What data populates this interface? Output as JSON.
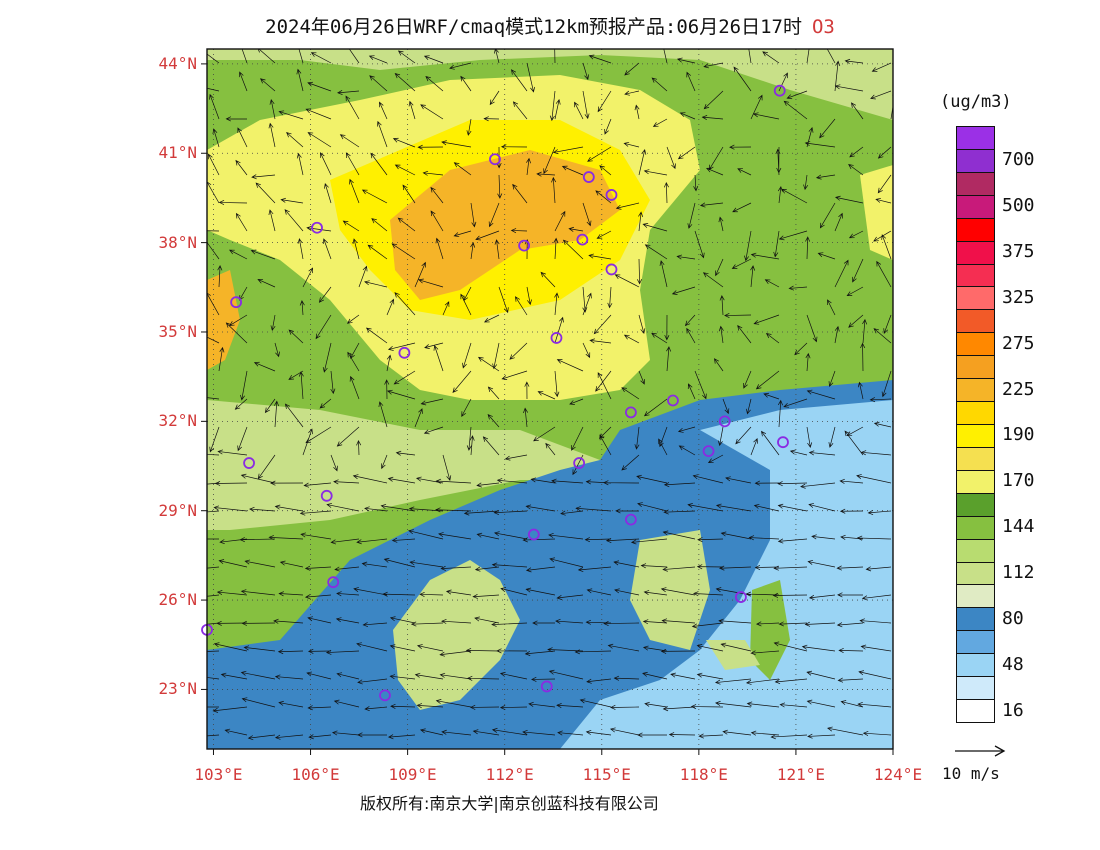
{
  "title": {
    "text": "2024年06月26日WRF/cmaq模式12km预报产品:06月26日17时",
    "pollutant": "O3"
  },
  "map": {
    "lat_labels": [
      "44°N",
      "41°N",
      "38°N",
      "35°N",
      "32°N",
      "29°N",
      "26°N",
      "23°N"
    ],
    "lon_labels": [
      "103°E",
      "106°E",
      "109°E",
      "112°E",
      "115°E",
      "118°E",
      "121°E",
      "124°E"
    ],
    "extent": {
      "lon_min": 102.8,
      "lon_max": 124.0,
      "lat_min": 21.0,
      "lat_max": 44.5
    }
  },
  "colorbar": {
    "unit": "(ug/m3)",
    "bins": [
      {
        "label": "",
        "color": "#9b30e6"
      },
      {
        "label": "700",
        "color": "#8f2fd0"
      },
      {
        "label": "",
        "color": "#b02a62"
      },
      {
        "label": "500",
        "color": "#c81a7a"
      },
      {
        "label": "",
        "color": "#ff0000"
      },
      {
        "label": "375",
        "color": "#f0104a"
      },
      {
        "label": "",
        "color": "#f52e52"
      },
      {
        "label": "325",
        "color": "#ff6a6a"
      },
      {
        "label": "",
        "color": "#f25a28"
      },
      {
        "label": "275",
        "color": "#ff8800"
      },
      {
        "label": "",
        "color": "#f5a020"
      },
      {
        "label": "225",
        "color": "#f5b428"
      },
      {
        "label": "",
        "color": "#ffd800"
      },
      {
        "label": "190",
        "color": "#fff000"
      },
      {
        "label": "",
        "color": "#f5e050"
      },
      {
        "label": "170",
        "color": "#f2f26a"
      },
      {
        "label": "",
        "color": "#5aa02c"
      },
      {
        "label": "144",
        "color": "#86c040"
      },
      {
        "label": "",
        "color": "#b8dc70"
      },
      {
        "label": "112",
        "color": "#c8e088"
      },
      {
        "label": "",
        "color": "#e0ebc4"
      },
      {
        "label": "80",
        "color": "#3c86c4"
      },
      {
        "label": "",
        "color": "#62a8e0"
      },
      {
        "label": "48",
        "color": "#9ad4f4"
      },
      {
        "label": "",
        "color": "#cfeafa"
      },
      {
        "label": "16",
        "color": "#ffffff"
      }
    ]
  },
  "wind_reference": "10 m/s",
  "copyright": "版权所有:南京大学|南京创蓝科技有限公司",
  "colors": {
    "label_red": "#d23a3a",
    "station_marker": "#8a2be2"
  },
  "stations": [
    {
      "lon": 120.5,
      "lat": 43.1
    },
    {
      "lon": 111.7,
      "lat": 40.8
    },
    {
      "lon": 114.6,
      "lat": 40.2
    },
    {
      "lon": 115.3,
      "lat": 39.6
    },
    {
      "lon": 106.2,
      "lat": 38.5
    },
    {
      "lon": 112.6,
      "lat": 37.9
    },
    {
      "lon": 114.4,
      "lat": 38.1
    },
    {
      "lon": 115.3,
      "lat": 37.1
    },
    {
      "lon": 103.7,
      "lat": 36.0
    },
    {
      "lon": 113.6,
      "lat": 34.8
    },
    {
      "lon": 108.9,
      "lat": 34.3
    },
    {
      "lon": 117.2,
      "lat": 32.7
    },
    {
      "lon": 118.8,
      "lat": 32.0
    },
    {
      "lon": 120.6,
      "lat": 31.3
    },
    {
      "lon": 115.9,
      "lat": 32.3
    },
    {
      "lon": 104.1,
      "lat": 30.6
    },
    {
      "lon": 114.3,
      "lat": 30.6
    },
    {
      "lon": 106.5,
      "lat": 29.5
    },
    {
      "lon": 115.9,
      "lat": 28.7
    },
    {
      "lon": 112.9,
      "lat": 28.2
    },
    {
      "lon": 118.3,
      "lat": 31.0
    },
    {
      "lon": 106.7,
      "lat": 26.6
    },
    {
      "lon": 119.3,
      "lat": 26.1
    },
    {
      "lon": 102.8,
      "lat": 25.0
    },
    {
      "lon": 108.3,
      "lat": 22.8
    },
    {
      "lon": 113.3,
      "lat": 23.1
    }
  ]
}
